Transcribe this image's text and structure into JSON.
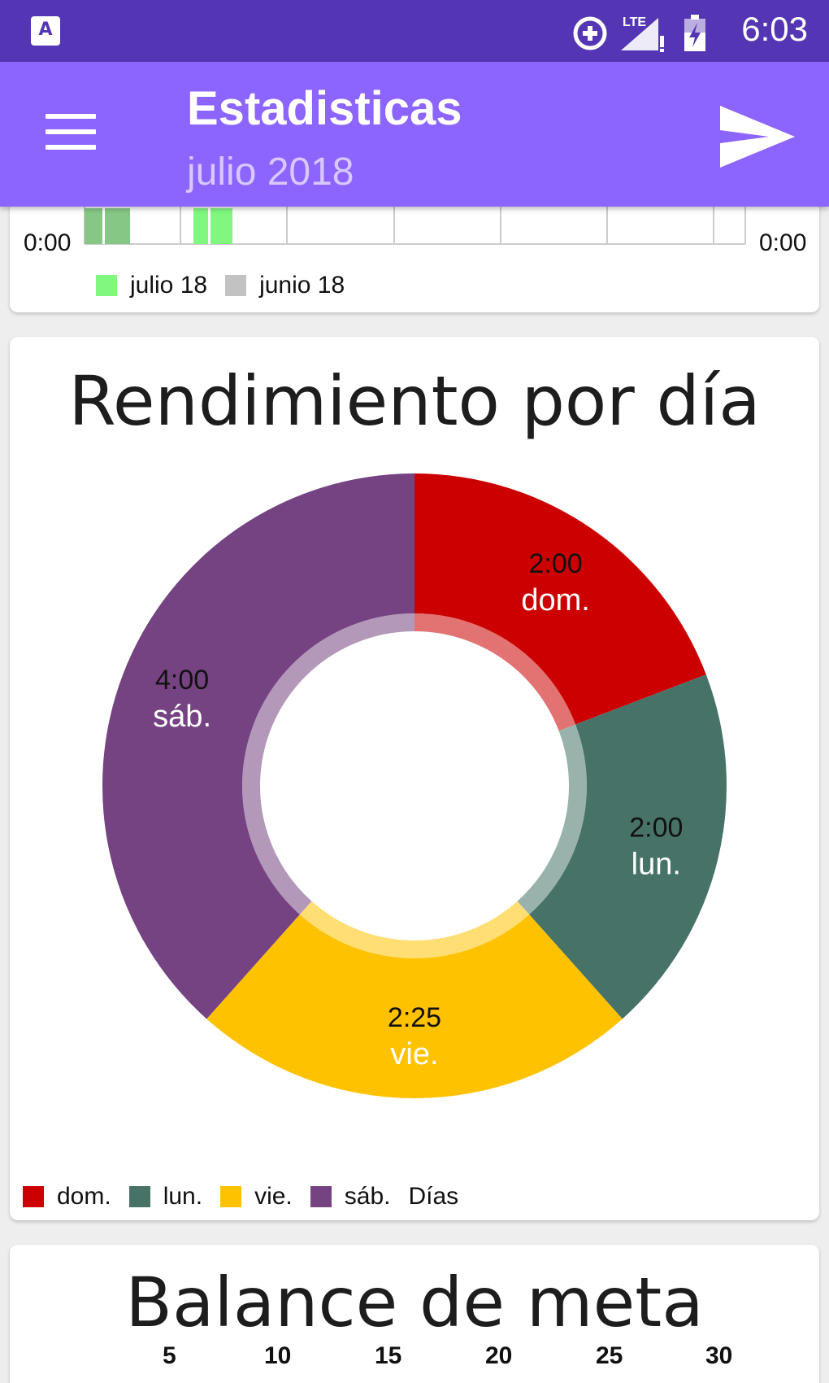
{
  "status_bar": {
    "app_badge": "A",
    "time": "6:03",
    "lte_label": "LTE",
    "icons": [
      "data-saver-icon",
      "signal-icon",
      "battery-icon"
    ]
  },
  "app_bar": {
    "title": "Estadisticas",
    "subtitle": "julio 2018",
    "menu_icon": "hamburger-menu-icon",
    "send_icon": "send-icon",
    "background": "#8c64ff"
  },
  "top_chart": {
    "left_label": "0:00",
    "right_label": "0:00",
    "legend": [
      {
        "label": "julio 18",
        "color": "#80f880"
      },
      {
        "label": "junio 18",
        "color": "#c2c2c2"
      }
    ]
  },
  "pie_card": {
    "title": "Rendimiento por día",
    "legend_suffix": "Días",
    "chart_data": {
      "type": "pie",
      "title": "Rendimiento por día",
      "categories": [
        "dom.",
        "lun.",
        "vie.",
        "sáb."
      ],
      "values": [
        120,
        120,
        145,
        240
      ],
      "value_labels": [
        "2:00",
        "2:00",
        "2:25",
        "4:00"
      ],
      "colors": [
        "#cc0000",
        "#477268",
        "#ffc200",
        "#754382"
      ],
      "legend_title": "Días",
      "legend_position": "bottom-left"
    }
  },
  "balance_card": {
    "title": "Balance de meta",
    "ticks": [
      "5",
      "10",
      "15",
      "20",
      "25",
      "30"
    ]
  }
}
